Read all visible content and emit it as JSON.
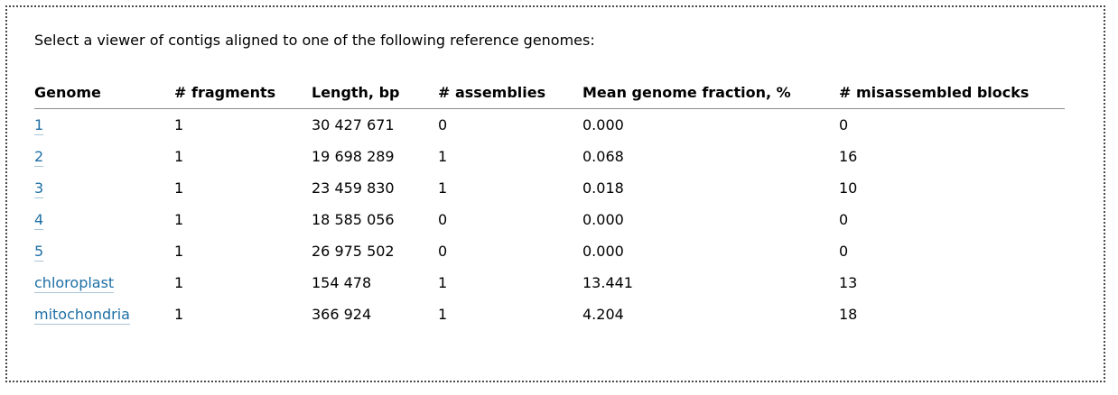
{
  "intro_text": "Select a viewer of contigs aligned to one of the following reference genomes:",
  "columns": {
    "genome": "Genome",
    "fragments": "# fragments",
    "length": "Length, bp",
    "assemblies": "# assemblies",
    "fraction": "Mean genome fraction, %",
    "misassembled": "# misassembled blocks"
  },
  "rows": [
    {
      "genome": "1",
      "fragments": "1",
      "length": "30 427 671",
      "assemblies": "0",
      "fraction": "0.000",
      "misassembled": "0"
    },
    {
      "genome": "2",
      "fragments": "1",
      "length": "19 698 289",
      "assemblies": "1",
      "fraction": "0.068",
      "misassembled": "16"
    },
    {
      "genome": "3",
      "fragments": "1",
      "length": "23 459 830",
      "assemblies": "1",
      "fraction": "0.018",
      "misassembled": "10"
    },
    {
      "genome": "4",
      "fragments": "1",
      "length": "18 585 056",
      "assemblies": "0",
      "fraction": "0.000",
      "misassembled": "0"
    },
    {
      "genome": "5",
      "fragments": "1",
      "length": "26 975 502",
      "assemblies": "0",
      "fraction": "0.000",
      "misassembled": "0"
    },
    {
      "genome": "chloroplast",
      "fragments": "1",
      "length": "154 478",
      "assemblies": "1",
      "fraction": "13.441",
      "misassembled": "13"
    },
    {
      "genome": "mitochondria",
      "fragments": "1",
      "length": "366 924",
      "assemblies": "1",
      "fraction": "4.204",
      "misassembled": "18"
    }
  ],
  "colors": {
    "link": "#1d6fa5",
    "border": "#4a4a4a",
    "header_rule": "#8c8c8c"
  }
}
